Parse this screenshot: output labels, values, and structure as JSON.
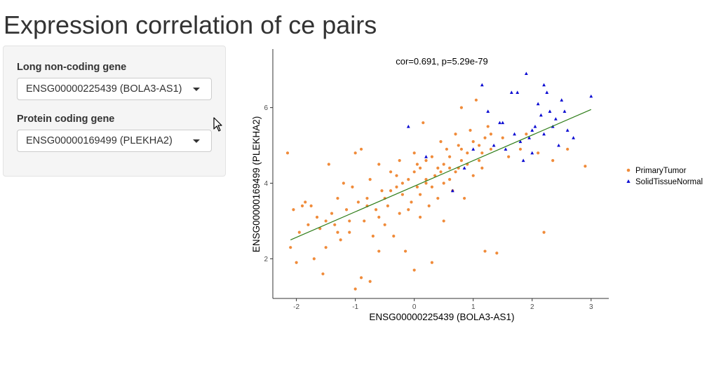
{
  "page": {
    "title": "Expression correlation of ce pairs"
  },
  "sidebar": {
    "lncrna": {
      "label": "Long non-coding gene",
      "selected": "ENSG00000225439 (BOLA3-AS1)"
    },
    "protein": {
      "label": "Protein coding gene",
      "selected": "ENSG00000169499 (PLEKHA2)"
    }
  },
  "colors": {
    "primary_tumor": "#f08b3a",
    "solid_tissue_normal": "#0a0ad2",
    "regression_line": "#2e7d18",
    "axis": "#333333"
  },
  "icons": {
    "cursor": "mouse-pointer-icon"
  },
  "chart_data": {
    "type": "scatter",
    "title": "cor=0.691, p=5.29e-79",
    "xlabel": "ENSG00000225439 (BOLA3-AS1)",
    "ylabel": "ENSG00000169499 (PLEKHA2)",
    "xlim": [
      -2.4,
      3.3
    ],
    "ylim": [
      0.95,
      7.55
    ],
    "xticks": [
      -2,
      -1,
      0,
      1,
      2,
      3
    ],
    "yticks": [
      2,
      4,
      6
    ],
    "grid": false,
    "legend_position": "right",
    "regression_line": {
      "x": [
        -2.1,
        3.0
      ],
      "y": [
        2.5,
        5.95
      ]
    },
    "series": [
      {
        "name": "PrimaryTumor",
        "marker": "circle",
        "points": [
          [
            -2.15,
            4.8
          ],
          [
            -2.1,
            2.3
          ],
          [
            -2.05,
            3.3
          ],
          [
            -2.0,
            1.9
          ],
          [
            -1.95,
            2.7
          ],
          [
            -1.9,
            3.4
          ],
          [
            -1.85,
            3.5
          ],
          [
            -1.8,
            2.9
          ],
          [
            -1.75,
            3.4
          ],
          [
            -1.7,
            2.0
          ],
          [
            -1.65,
            3.1
          ],
          [
            -1.6,
            2.8
          ],
          [
            -1.55,
            1.6
          ],
          [
            -1.5,
            2.3
          ],
          [
            -1.5,
            3.0
          ],
          [
            -1.45,
            4.5
          ],
          [
            -1.4,
            3.2
          ],
          [
            -1.35,
            2.9
          ],
          [
            -1.3,
            3.6
          ],
          [
            -1.25,
            2.5
          ],
          [
            -1.2,
            4.0
          ],
          [
            -1.15,
            3.3
          ],
          [
            -1.1,
            2.7
          ],
          [
            -1.05,
            3.9
          ],
          [
            -1.0,
            4.8
          ],
          [
            -1.0,
            1.2
          ],
          [
            -0.95,
            3.5
          ],
          [
            -0.9,
            4.9
          ],
          [
            -0.9,
            1.5
          ],
          [
            -0.85,
            3.0
          ],
          [
            -0.8,
            3.6
          ],
          [
            -0.75,
            1.4
          ],
          [
            -0.75,
            4.1
          ],
          [
            -0.7,
            2.6
          ],
          [
            -0.65,
            3.3
          ],
          [
            -0.6,
            4.5
          ],
          [
            -0.6,
            2.2
          ],
          [
            -0.55,
            3.8
          ],
          [
            -0.5,
            2.9
          ],
          [
            -0.45,
            3.4
          ],
          [
            -0.4,
            4.3
          ],
          [
            -0.35,
            2.6
          ],
          [
            -0.3,
            3.9
          ],
          [
            -0.25,
            4.6
          ],
          [
            -0.25,
            3.2
          ],
          [
            -0.2,
            3.7
          ],
          [
            -0.15,
            2.2
          ],
          [
            -0.1,
            4.1
          ],
          [
            -0.05,
            3.5
          ],
          [
            0.0,
            4.8
          ],
          [
            0.0,
            1.7
          ],
          [
            0.05,
            3.9
          ],
          [
            0.1,
            4.4
          ],
          [
            0.1,
            3.1
          ],
          [
            0.15,
            5.6
          ],
          [
            0.2,
            4.0
          ],
          [
            0.25,
            3.4
          ],
          [
            0.3,
            4.7
          ],
          [
            0.3,
            1.9
          ],
          [
            0.35,
            4.2
          ],
          [
            0.4,
            3.6
          ],
          [
            0.45,
            5.1
          ],
          [
            0.5,
            4.5
          ],
          [
            0.5,
            3.0
          ],
          [
            0.55,
            4.9
          ],
          [
            0.6,
            4.1
          ],
          [
            0.65,
            3.8
          ],
          [
            0.7,
            5.3
          ],
          [
            0.75,
            4.4
          ],
          [
            0.8,
            6.0
          ],
          [
            0.85,
            3.6
          ],
          [
            0.9,
            4.8
          ],
          [
            0.95,
            5.4
          ],
          [
            1.0,
            4.2
          ],
          [
            1.05,
            6.2
          ],
          [
            1.1,
            5.0
          ],
          [
            1.15,
            4.4
          ],
          [
            1.2,
            2.2
          ],
          [
            1.25,
            5.5
          ],
          [
            1.3,
            4.9
          ],
          [
            1.4,
            2.15
          ],
          [
            1.5,
            5.2
          ],
          [
            1.6,
            4.7
          ],
          [
            1.8,
            4.9
          ],
          [
            1.9,
            5.3
          ],
          [
            2.1,
            4.8
          ],
          [
            2.2,
            2.7
          ],
          [
            2.35,
            4.6
          ],
          [
            2.6,
            4.9
          ],
          [
            2.9,
            4.45
          ],
          [
            -0.5,
            3.6
          ],
          [
            -0.3,
            4.2
          ],
          [
            -0.1,
            3.3
          ],
          [
            0.0,
            4.3
          ],
          [
            0.1,
            3.7
          ],
          [
            0.2,
            4.6
          ],
          [
            0.3,
            3.9
          ],
          [
            0.4,
            4.4
          ],
          [
            0.5,
            4.0
          ],
          [
            0.6,
            4.7
          ],
          [
            0.7,
            4.3
          ],
          [
            0.8,
            4.9
          ],
          [
            0.9,
            4.5
          ],
          [
            1.0,
            5.1
          ],
          [
            1.1,
            4.6
          ],
          [
            1.2,
            5.2
          ],
          [
            -0.2,
            4.0
          ],
          [
            0.2,
            4.1
          ],
          [
            0.6,
            4.4
          ],
          [
            0.8,
            4.6
          ],
          [
            -0.6,
            3.1
          ],
          [
            -0.4,
            3.8
          ],
          [
            0.05,
            4.5
          ],
          [
            0.45,
            4.3
          ],
          [
            0.75,
            5.0
          ],
          [
            1.15,
            4.8
          ],
          [
            -0.8,
            3.4
          ],
          [
            -1.1,
            3.0
          ],
          [
            -1.3,
            2.7
          ],
          [
            1.3,
            5.3
          ]
        ]
      },
      {
        "name": "SolidTissueNormal",
        "marker": "triangle",
        "points": [
          [
            -0.1,
            5.5
          ],
          [
            0.2,
            4.7
          ],
          [
            0.65,
            3.8
          ],
          [
            0.85,
            4.4
          ],
          [
            1.0,
            4.9
          ],
          [
            1.15,
            6.6
          ],
          [
            1.25,
            5.9
          ],
          [
            1.35,
            5.0
          ],
          [
            1.45,
            5.6
          ],
          [
            1.55,
            4.9
          ],
          [
            1.65,
            6.4
          ],
          [
            1.75,
            6.4
          ],
          [
            1.8,
            5.1
          ],
          [
            1.85,
            4.6
          ],
          [
            1.9,
            6.9
          ],
          [
            1.95,
            5.2
          ],
          [
            2.0,
            4.8
          ],
          [
            2.05,
            5.5
          ],
          [
            2.1,
            6.1
          ],
          [
            2.15,
            5.8
          ],
          [
            2.2,
            6.6
          ],
          [
            2.25,
            6.4
          ],
          [
            2.3,
            5.9
          ],
          [
            2.35,
            5.5
          ],
          [
            2.4,
            5.7
          ],
          [
            2.45,
            5.0
          ],
          [
            2.5,
            6.2
          ],
          [
            2.55,
            5.9
          ],
          [
            2.6,
            5.4
          ],
          [
            2.7,
            5.2
          ],
          [
            3.0,
            6.3
          ],
          [
            1.7,
            5.3
          ],
          [
            2.0,
            5.4
          ],
          [
            2.2,
            5.3
          ],
          [
            1.5,
            5.6
          ]
        ]
      }
    ]
  }
}
